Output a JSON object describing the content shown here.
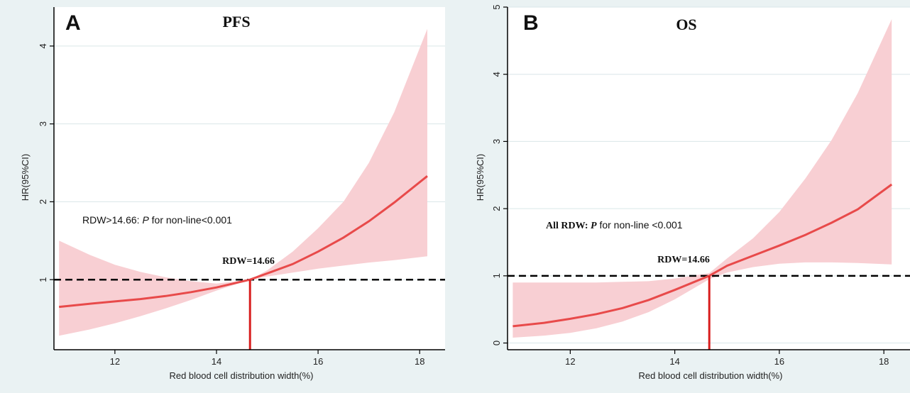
{
  "chart_data": [
    {
      "type": "line",
      "panel_letter": "A",
      "title": "PFS",
      "xlabel": "Red blood cell distribution width",
      "xlabel_unit": "(%)",
      "ylabel": "HR(95%CI)",
      "xlim": [
        10.8,
        18.5
      ],
      "ylim": [
        0.1,
        4.5
      ],
      "xticks": [
        12,
        14,
        16,
        18
      ],
      "yticks": [
        1,
        2,
        3,
        4
      ],
      "reference_line_y": 1,
      "cutoff_x": 14.66,
      "cutoff_label": "RDW=14.66",
      "annotation": {
        "prefix": "RDW>14.66: ",
        "italic": "P",
        "suffix": " for non-line<0.001"
      },
      "series": [
        {
          "x": [
            10.9,
            11.5,
            12.0,
            12.5,
            13.0,
            13.5,
            14.0,
            14.66,
            15.0,
            15.5,
            16.0,
            16.5,
            17.0,
            17.5,
            18.15
          ],
          "y": [
            0.65,
            0.69,
            0.72,
            0.75,
            0.79,
            0.84,
            0.9,
            1.0,
            1.08,
            1.2,
            1.36,
            1.54,
            1.75,
            1.99,
            2.33
          ],
          "lower": [
            0.28,
            0.36,
            0.44,
            0.53,
            0.63,
            0.74,
            0.86,
            1.0,
            1.04,
            1.09,
            1.14,
            1.18,
            1.22,
            1.25,
            1.3
          ],
          "upper": [
            1.5,
            1.32,
            1.19,
            1.1,
            1.03,
            0.98,
            0.95,
            1.0,
            1.12,
            1.36,
            1.66,
            2.0,
            2.5,
            3.15,
            4.22
          ]
        }
      ]
    },
    {
      "type": "line",
      "panel_letter": "B",
      "title": "OS",
      "xlabel": "Red blood cell distribution width",
      "xlabel_unit": "(%)",
      "ylabel": "HR(95%CI)",
      "xlim": [
        10.8,
        18.5
      ],
      "ylim": [
        -0.1,
        5.0
      ],
      "xticks": [
        12,
        14,
        16,
        18
      ],
      "yticks": [
        0,
        1,
        2,
        3,
        4,
        5
      ],
      "reference_line_y": 1,
      "cutoff_x": 14.66,
      "cutoff_label": "RDW=14.66",
      "annotation": {
        "prefix": "All RDW: ",
        "italic": "P",
        "suffix": " for non-line <0.001"
      },
      "series": [
        {
          "x": [
            10.9,
            11.5,
            12.0,
            12.5,
            13.0,
            13.5,
            14.0,
            14.66,
            15.0,
            15.5,
            16.0,
            16.5,
            17.0,
            17.5,
            18.15
          ],
          "y": [
            0.25,
            0.3,
            0.36,
            0.43,
            0.52,
            0.64,
            0.79,
            1.0,
            1.15,
            1.3,
            1.45,
            1.61,
            1.79,
            1.99,
            2.36
          ],
          "lower": [
            0.08,
            0.11,
            0.15,
            0.22,
            0.32,
            0.46,
            0.65,
            0.95,
            1.05,
            1.13,
            1.18,
            1.2,
            1.2,
            1.19,
            1.17
          ],
          "upper": [
            0.9,
            0.9,
            0.9,
            0.9,
            0.91,
            0.92,
            0.96,
            1.04,
            1.26,
            1.56,
            1.95,
            2.45,
            3.02,
            3.72,
            4.82
          ]
        }
      ]
    }
  ],
  "colors": {
    "background": "#eaf2f3",
    "plot_background": "#ffffff",
    "curve": "#e84a4a",
    "band": "#f8cfd3",
    "cutoff": "#d81e1e",
    "reference": "#000000",
    "grid": "#d9e6e8"
  }
}
